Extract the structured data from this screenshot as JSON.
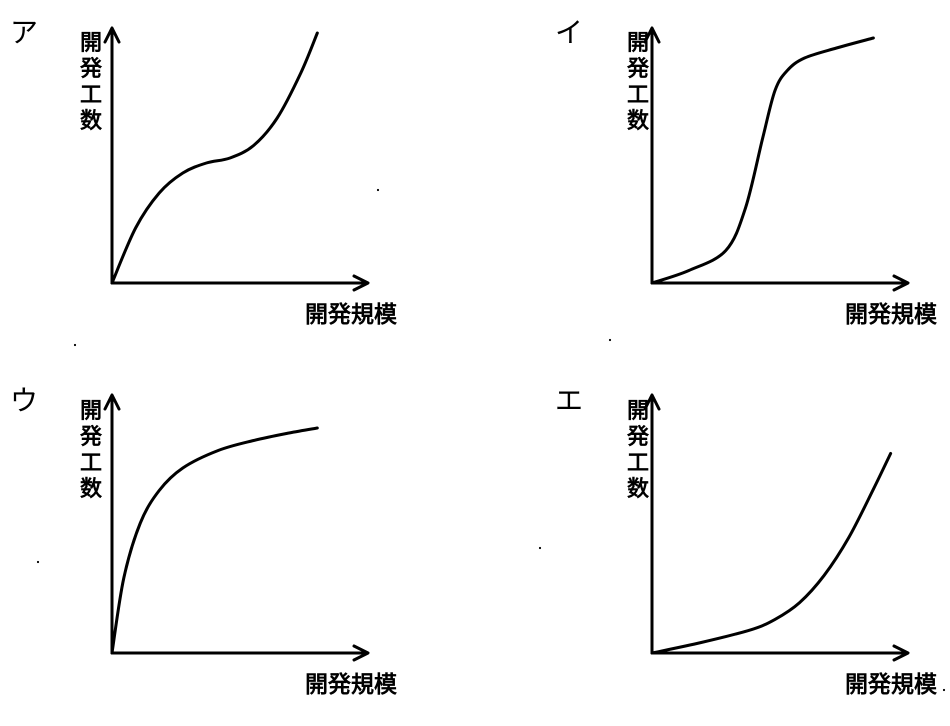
{
  "chart_data": [
    {
      "panel": "ア",
      "type": "line",
      "xlabel": "開発規模",
      "ylabel": "開発工数",
      "xlim": [
        0,
        1
      ],
      "ylim": [
        0,
        1
      ],
      "series": [
        {
          "x": [
            0,
            0.1,
            0.2,
            0.3,
            0.4,
            0.5,
            0.6,
            0.7,
            0.8,
            0.87
          ],
          "y": [
            0,
            0.22,
            0.36,
            0.44,
            0.48,
            0.5,
            0.55,
            0.66,
            0.84,
            1.0
          ]
        }
      ]
    },
    {
      "panel": "イ",
      "type": "line",
      "xlabel": "開発規模",
      "ylabel": "開発工数",
      "xlim": [
        0,
        1
      ],
      "ylim": [
        0,
        1
      ],
      "series": [
        {
          "x": [
            0,
            0.15,
            0.3,
            0.38,
            0.45,
            0.5,
            0.55,
            0.62,
            0.75,
            0.9
          ],
          "y": [
            0,
            0.05,
            0.13,
            0.3,
            0.58,
            0.77,
            0.85,
            0.9,
            0.94,
            0.98
          ]
        }
      ]
    },
    {
      "panel": "ウ",
      "type": "line",
      "xlabel": "開発規模",
      "ylabel": "開発工数",
      "xlim": [
        0,
        1
      ],
      "ylim": [
        0,
        1
      ],
      "series": [
        {
          "x": [
            0,
            0.05,
            0.12,
            0.2,
            0.3,
            0.45,
            0.6,
            0.75,
            0.87
          ],
          "y": [
            0,
            0.3,
            0.52,
            0.65,
            0.74,
            0.81,
            0.85,
            0.88,
            0.9
          ]
        }
      ]
    },
    {
      "panel": "エ",
      "type": "line",
      "xlabel": "開発規模",
      "ylabel": "開発工数",
      "xlim": [
        0,
        1
      ],
      "ylim": [
        0,
        1
      ],
      "series": [
        {
          "x": [
            0,
            0.2,
            0.4,
            0.5,
            0.6,
            0.7,
            0.8,
            0.9,
            0.97
          ],
          "y": [
            0,
            0.05,
            0.11,
            0.16,
            0.24,
            0.37,
            0.55,
            0.78,
            0.95
          ]
        }
      ]
    }
  ]
}
